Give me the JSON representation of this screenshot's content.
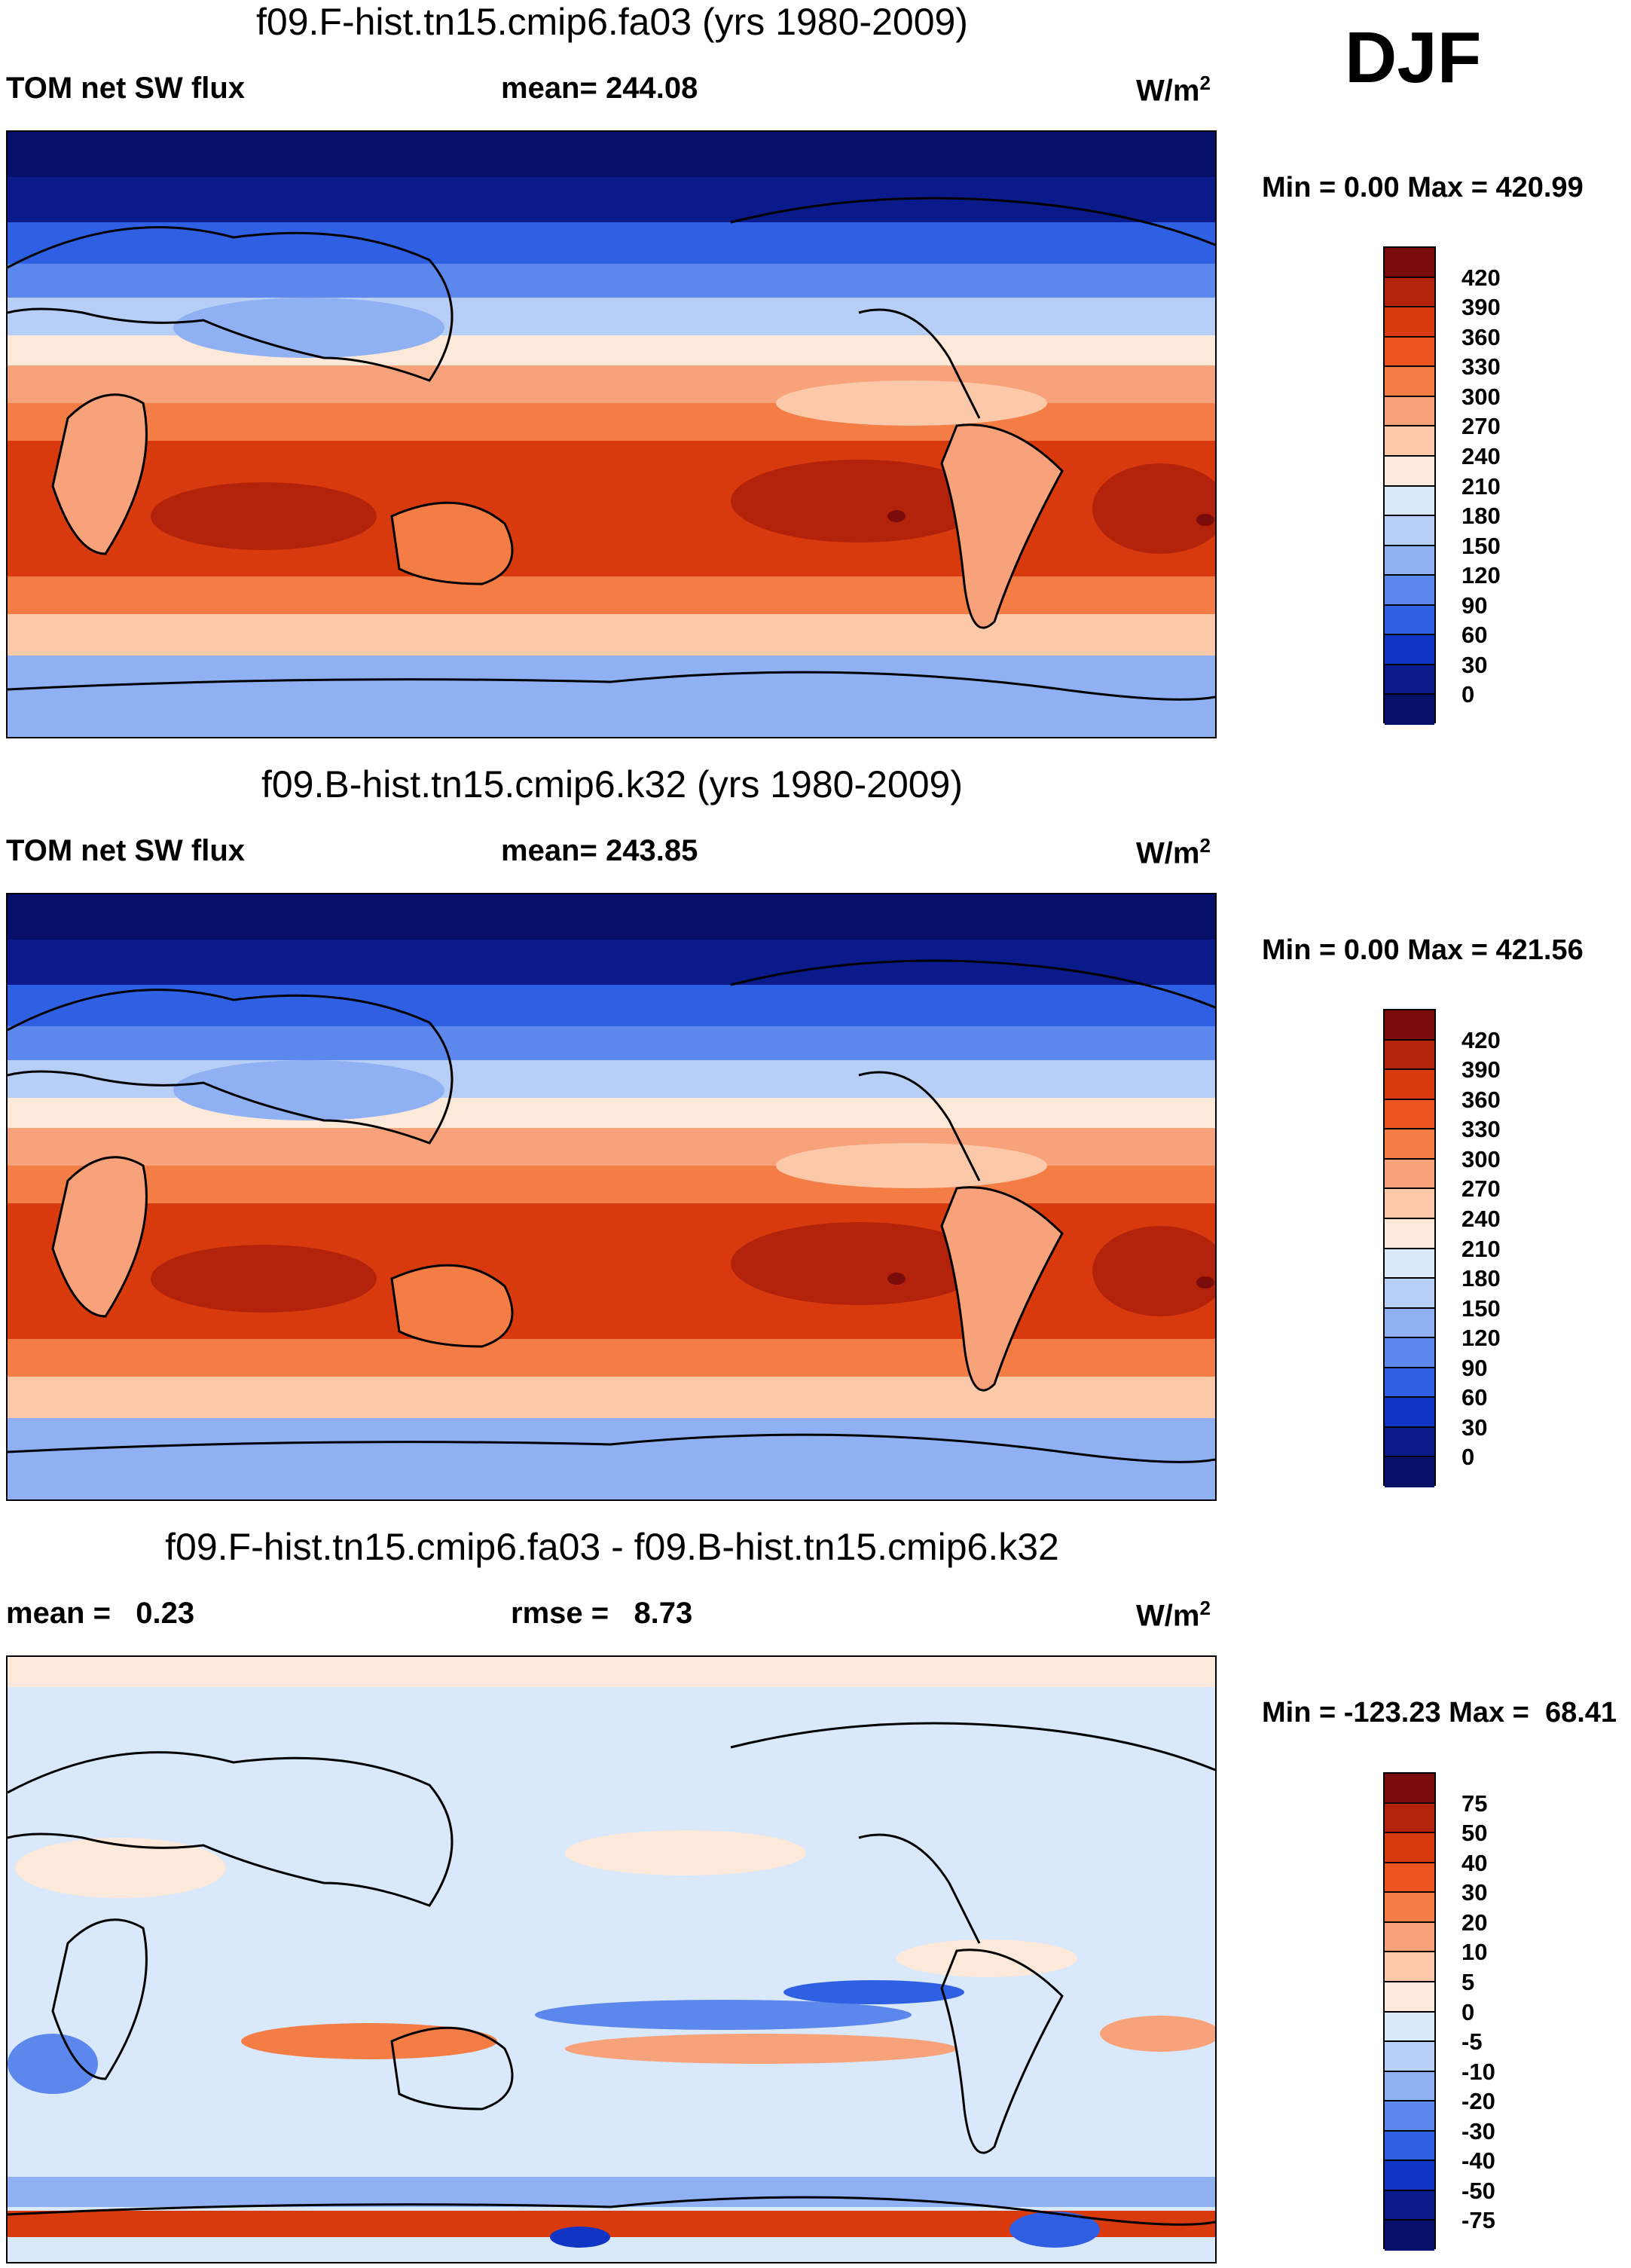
{
  "season": "DJF",
  "panels": [
    {
      "title": "f09.F-hist.tn15.cmip6.fa03 (yrs 1980-2009)",
      "left_label": "TOM net SW flux",
      "mid_label": "mean= 244.08",
      "units": "W/m",
      "units_exp": "2",
      "minmax": "Min =   0.00 Max = 420.99",
      "colorbar_labels": [
        "420",
        "390",
        "360",
        "330",
        "300",
        "270",
        "240",
        "210",
        "180",
        "150",
        "120",
        "90",
        "60",
        "30",
        "0"
      ]
    },
    {
      "title": "f09.B-hist.tn15.cmip6.k32 (yrs 1980-2009)",
      "left_label": "TOM net SW flux",
      "mid_label": "mean= 243.85",
      "units": "W/m",
      "units_exp": "2",
      "minmax": "Min =   0.00 Max = 421.56",
      "colorbar_labels": [
        "420",
        "390",
        "360",
        "330",
        "300",
        "270",
        "240",
        "210",
        "180",
        "150",
        "120",
        "90",
        "60",
        "30",
        "0"
      ]
    },
    {
      "title": "f09.F-hist.tn15.cmip6.fa03 - f09.B-hist.tn15.cmip6.k32",
      "left_label": "mean =   0.23",
      "mid_label": "rmse =   8.73",
      "units": "W/m",
      "units_exp": "2",
      "minmax": "Min = -123.23 Max =  68.41",
      "colorbar_labels": [
        "75",
        "50",
        "40",
        "30",
        "20",
        "10",
        "5",
        "0",
        "-5",
        "-10",
        "-20",
        "-30",
        "-40",
        "-50",
        "-75"
      ]
    }
  ],
  "colors": {
    "abs_scale": [
      "#7a0c0c",
      "#b3230c",
      "#d83a0e",
      "#ee5420",
      "#f47c45",
      "#f7a27a",
      "#fbc9aa",
      "#fde9d9",
      "#d9e8fb",
      "#b7cff7",
      "#8fb0f2",
      "#5c87ec",
      "#2f5fe3",
      "#1034c4",
      "#0a1a8a",
      "#06106a"
    ],
    "diff_scale": [
      "#7a0c0c",
      "#b3230c",
      "#d83a0e",
      "#ee5420",
      "#f47c45",
      "#f7a27a",
      "#fbc9aa",
      "#fde9d9",
      "#d9e8fb",
      "#b7cff7",
      "#8fb0f2",
      "#5c87ec",
      "#2f5fe3",
      "#1034c4",
      "#0a1a8a",
      "#06106a"
    ]
  }
}
